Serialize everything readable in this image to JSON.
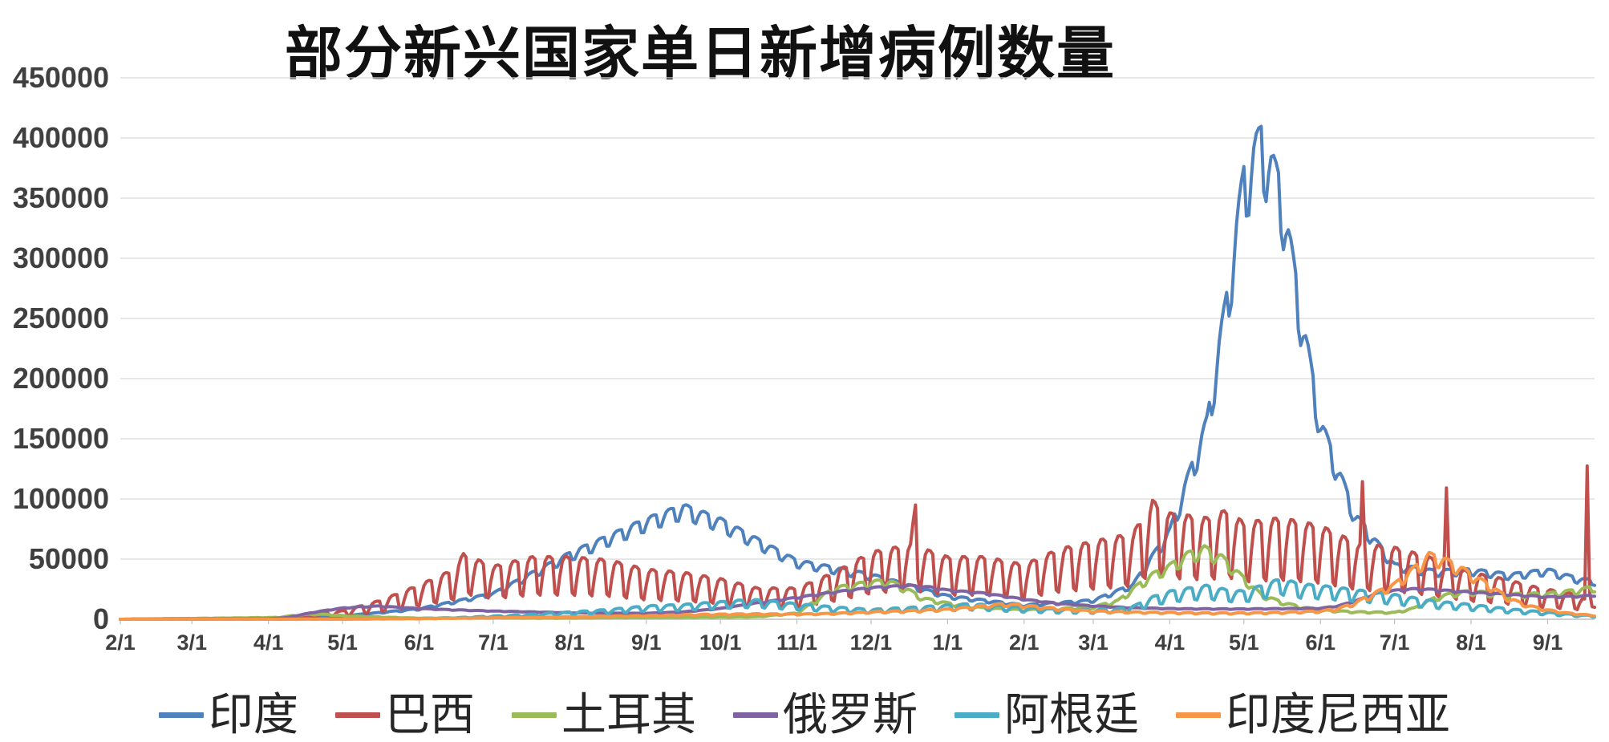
{
  "chart_data": {
    "type": "line",
    "title": "部分新兴国家单日新增病例数量",
    "background_color": "#FFFFFF",
    "grid": true,
    "grid_color": "#D9D9D9",
    "axis_line_color": "#BFBFBF",
    "axis_label_color": "#3F3F3F",
    "legend_position": "bottom",
    "ylim": [
      0,
      450000
    ],
    "y_ticks": [
      0,
      50000,
      100000,
      150000,
      200000,
      250000,
      300000,
      350000,
      400000,
      450000
    ],
    "x_range_days": [
      0,
      597
    ],
    "x_ticks": [
      "2/1",
      "3/1",
      "4/1",
      "5/1",
      "6/1",
      "7/1",
      "8/1",
      "9/1",
      "10/1",
      "11/1",
      "12/1",
      "1/1",
      "2/1",
      "3/1",
      "4/1",
      "5/1",
      "6/1",
      "7/1",
      "8/1",
      "9/1"
    ],
    "x_tick_days": [
      0,
      29,
      60,
      90,
      121,
      151,
      182,
      213,
      243,
      274,
      304,
      335,
      366,
      394,
      425,
      455,
      486,
      516,
      547,
      578
    ],
    "weekly_pattern": [
      0.5,
      -0.9,
      -1.0,
      -0.2,
      0.4,
      0.6,
      0.6
    ],
    "series": [
      {
        "name": "印度",
        "color": "#4F81BD",
        "weekly_amp": 0.09,
        "trend": [
          [
            0,
            0
          ],
          [
            60,
            1200
          ],
          [
            90,
            2600
          ],
          [
            121,
            8500
          ],
          [
            151,
            21000
          ],
          [
            182,
            53000
          ],
          [
            213,
            80000
          ],
          [
            228,
            91000
          ],
          [
            243,
            80000
          ],
          [
            274,
            47000
          ],
          [
            304,
            36000
          ],
          [
            335,
            19000
          ],
          [
            366,
            11500
          ],
          [
            394,
            15500
          ],
          [
            410,
            28000
          ],
          [
            425,
            72000
          ],
          [
            440,
            160000
          ],
          [
            448,
            260000
          ],
          [
            455,
            360000
          ],
          [
            462,
            392000
          ],
          [
            470,
            350000
          ],
          [
            478,
            250000
          ],
          [
            486,
            160000
          ],
          [
            500,
            85000
          ],
          [
            516,
            44000
          ],
          [
            532,
            39000
          ],
          [
            547,
            40000
          ],
          [
            563,
            36000
          ],
          [
            578,
            40000
          ],
          [
            590,
            33000
          ],
          [
            597,
            31000
          ]
        ]
      },
      {
        "name": "巴西",
        "color": "#C0504D",
        "weekly_amp": 0.5,
        "trend": [
          [
            0,
            0
          ],
          [
            53,
            300
          ],
          [
            60,
            800
          ],
          [
            75,
            2500
          ],
          [
            90,
            5500
          ],
          [
            105,
            12000
          ],
          [
            121,
            22000
          ],
          [
            135,
            32000
          ],
          [
            139,
            42000
          ],
          [
            151,
            34000
          ],
          [
            167,
            40000
          ],
          [
            182,
            40000
          ],
          [
            198,
            38000
          ],
          [
            213,
            32000
          ],
          [
            228,
            30000
          ],
          [
            243,
            26000
          ],
          [
            258,
            20000
          ],
          [
            274,
            20000
          ],
          [
            289,
            30000
          ],
          [
            304,
            43000
          ],
          [
            320,
            48000
          ],
          [
            322,
            76000
          ],
          [
            324,
            46000
          ],
          [
            335,
            40000
          ],
          [
            350,
            40000
          ],
          [
            366,
            35000
          ],
          [
            380,
            45000
          ],
          [
            394,
            50000
          ],
          [
            410,
            55000
          ],
          [
            418,
            76000
          ],
          [
            425,
            68000
          ],
          [
            440,
            65000
          ],
          [
            448,
            70000
          ],
          [
            455,
            62000
          ],
          [
            470,
            65000
          ],
          [
            486,
            60000
          ],
          [
            502,
            48000
          ],
          [
            503,
            88000
          ],
          [
            504,
            48000
          ],
          [
            516,
            46000
          ],
          [
            530,
            40000
          ],
          [
            536,
            35000
          ],
          [
            537,
            84000
          ],
          [
            538,
            35000
          ],
          [
            547,
            30000
          ],
          [
            560,
            26000
          ],
          [
            575,
            20000
          ],
          [
            590,
            16000
          ],
          [
            592,
            14000
          ],
          [
            593,
            13000
          ],
          [
            594,
            98000
          ],
          [
            595,
            18000
          ],
          [
            597,
            20000
          ]
        ]
      },
      {
        "name": "土耳其",
        "color": "#9BBB59",
        "weekly_amp": 0.12,
        "trend": [
          [
            0,
            0
          ],
          [
            64,
            1500
          ],
          [
            71,
            3200
          ],
          [
            78,
            4200
          ],
          [
            85,
            3800
          ],
          [
            90,
            2900
          ],
          [
            105,
            1800
          ],
          [
            121,
            900
          ],
          [
            135,
            1100
          ],
          [
            151,
            1300
          ],
          [
            167,
            1000
          ],
          [
            182,
            1000
          ],
          [
            198,
            1300
          ],
          [
            213,
            1500
          ],
          [
            228,
            1600
          ],
          [
            243,
            1800
          ],
          [
            258,
            2100
          ],
          [
            274,
            5000
          ],
          [
            289,
            25000
          ],
          [
            304,
            30000
          ],
          [
            311,
            31000
          ],
          [
            318,
            25000
          ],
          [
            325,
            17000
          ],
          [
            335,
            13000
          ],
          [
            350,
            9000
          ],
          [
            366,
            7500
          ],
          [
            380,
            8500
          ],
          [
            394,
            10000
          ],
          [
            404,
            15000
          ],
          [
            411,
            26000
          ],
          [
            418,
            36000
          ],
          [
            425,
            43000
          ],
          [
            432,
            52000
          ],
          [
            439,
            57000
          ],
          [
            446,
            50000
          ],
          [
            455,
            33000
          ],
          [
            462,
            20000
          ],
          [
            470,
            14000
          ],
          [
            478,
            10000
          ],
          [
            486,
            7500
          ],
          [
            500,
            6000
          ],
          [
            516,
            5500
          ],
          [
            524,
            9000
          ],
          [
            532,
            17000
          ],
          [
            540,
            21000
          ],
          [
            547,
            22500
          ],
          [
            562,
            20000
          ],
          [
            578,
            20500
          ],
          [
            590,
            23500
          ],
          [
            597,
            26000
          ]
        ]
      },
      {
        "name": "俄罗斯",
        "color": "#8064A2",
        "weekly_amp": 0.035,
        "trend": [
          [
            0,
            0
          ],
          [
            60,
            440
          ],
          [
            68,
            1500
          ],
          [
            75,
            4500
          ],
          [
            82,
            7000
          ],
          [
            90,
            9300
          ],
          [
            97,
            10300
          ],
          [
            105,
            10900
          ],
          [
            113,
            9800
          ],
          [
            121,
            8900
          ],
          [
            135,
            7800
          ],
          [
            151,
            6800
          ],
          [
            167,
            6100
          ],
          [
            182,
            5400
          ],
          [
            198,
            5000
          ],
          [
            213,
            4900
          ],
          [
            228,
            6100
          ],
          [
            243,
            8900
          ],
          [
            258,
            13500
          ],
          [
            274,
            18000
          ],
          [
            289,
            22500
          ],
          [
            304,
            26000
          ],
          [
            311,
            27000
          ],
          [
            320,
            27800
          ],
          [
            328,
            26500
          ],
          [
            335,
            24000
          ],
          [
            350,
            21500
          ],
          [
            366,
            16500
          ],
          [
            380,
            13000
          ],
          [
            394,
            11000
          ],
          [
            410,
            9500
          ],
          [
            425,
            8800
          ],
          [
            440,
            8600
          ],
          [
            455,
            8500
          ],
          [
            470,
            8800
          ],
          [
            486,
            9100
          ],
          [
            493,
            11000
          ],
          [
            500,
            15000
          ],
          [
            508,
            21000
          ],
          [
            516,
            23800
          ],
          [
            524,
            25100
          ],
          [
            532,
            24500
          ],
          [
            547,
            22300
          ],
          [
            562,
            20500
          ],
          [
            578,
            18500
          ],
          [
            590,
            19000
          ],
          [
            597,
            19800
          ]
        ]
      },
      {
        "name": "阿根廷",
        "color": "#4BACC6",
        "weekly_amp": 0.3,
        "trend": [
          [
            0,
            0
          ],
          [
            90,
            150
          ],
          [
            121,
            600
          ],
          [
            135,
            1100
          ],
          [
            151,
            2300
          ],
          [
            167,
            3600
          ],
          [
            182,
            5200
          ],
          [
            198,
            7000
          ],
          [
            213,
            9500
          ],
          [
            228,
            10500
          ],
          [
            243,
            12500
          ],
          [
            251,
            13500
          ],
          [
            258,
            13800
          ],
          [
            266,
            12500
          ],
          [
            274,
            11000
          ],
          [
            289,
            8800
          ],
          [
            304,
            7000
          ],
          [
            320,
            8500
          ],
          [
            335,
            10000
          ],
          [
            343,
            11000
          ],
          [
            350,
            10500
          ],
          [
            366,
            8500
          ],
          [
            380,
            7200
          ],
          [
            394,
            7000
          ],
          [
            404,
            7500
          ],
          [
            411,
            10000
          ],
          [
            418,
            16000
          ],
          [
            425,
            20000
          ],
          [
            432,
            22000
          ],
          [
            440,
            24000
          ],
          [
            448,
            21000
          ],
          [
            455,
            20000
          ],
          [
            462,
            24000
          ],
          [
            470,
            29000
          ],
          [
            478,
            25000
          ],
          [
            486,
            24000
          ],
          [
            500,
            21000
          ],
          [
            516,
            17500
          ],
          [
            532,
            13000
          ],
          [
            547,
            10500
          ],
          [
            562,
            7500
          ],
          [
            578,
            5000
          ],
          [
            590,
            3200
          ],
          [
            597,
            2600
          ]
        ]
      },
      {
        "name": "印度尼西亚",
        "color": "#F79646",
        "weekly_amp": 0.13,
        "trend": [
          [
            0,
            0
          ],
          [
            90,
            120
          ],
          [
            121,
            500
          ],
          [
            151,
            1200
          ],
          [
            182,
            1900
          ],
          [
            213,
            2900
          ],
          [
            228,
            3600
          ],
          [
            243,
            4000
          ],
          [
            258,
            4300
          ],
          [
            274,
            4100
          ],
          [
            289,
            4700
          ],
          [
            304,
            5800
          ],
          [
            320,
            6800
          ],
          [
            335,
            8000
          ],
          [
            343,
            9500
          ],
          [
            350,
            10800
          ],
          [
            357,
            12200
          ],
          [
            364,
            11500
          ],
          [
            366,
            11000
          ],
          [
            380,
            8500
          ],
          [
            394,
            6500
          ],
          [
            410,
            5800
          ],
          [
            425,
            5400
          ],
          [
            440,
            5000
          ],
          [
            455,
            5000
          ],
          [
            470,
            5500
          ],
          [
            486,
            6500
          ],
          [
            493,
            8500
          ],
          [
            500,
            13000
          ],
          [
            508,
            21000
          ],
          [
            516,
            28000
          ],
          [
            524,
            41000
          ],
          [
            530,
            51500
          ],
          [
            536,
            48000
          ],
          [
            543,
            41000
          ],
          [
            547,
            36000
          ],
          [
            554,
            28000
          ],
          [
            562,
            17000
          ],
          [
            570,
            11000
          ],
          [
            578,
            7500
          ],
          [
            586,
            5000
          ],
          [
            590,
            4200
          ],
          [
            597,
            3000
          ]
        ]
      }
    ]
  }
}
